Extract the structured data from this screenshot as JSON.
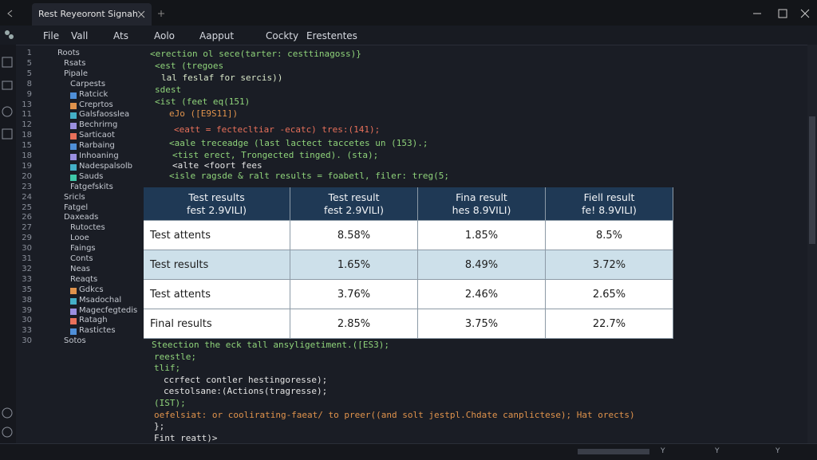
{
  "tab": {
    "title": "Rest Reyeoront Signah"
  },
  "menu": [
    "File",
    "Vall",
    "Ats",
    "Aolo",
    "Aapput",
    "Cockty",
    "Erestentes"
  ],
  "sidebar": [
    "Roots",
    "Rsats",
    "Pipale",
    "Carpests",
    "Ratcick",
    "Creprtos",
    "Galsfaosslea",
    "Bechrirng",
    "Sarticaot",
    "Rarbaing",
    "Inhoaning",
    "Nadespalsolb",
    "Sauds",
    "Fatgefskits",
    "Sricls",
    "Fatgel",
    "Daxeads",
    "Rutoctes",
    "Looe",
    "Faings",
    "Conts",
    "Neas",
    "Reaqts",
    "Gdkcs",
    "Msadochal",
    "Magecfegtedis",
    "Ratagh",
    "Rastictes",
    "Sotos"
  ],
  "line_numbers": [
    "1",
    "5",
    "5",
    "8",
    "9",
    "13",
    "11",
    "12",
    "18",
    "15",
    "18",
    "19",
    "20",
    "23",
    "24",
    "25",
    "26",
    "27",
    "29",
    "30",
    "31",
    "32",
    "33",
    "35",
    "38",
    "39",
    "30",
    "33",
    "30"
  ],
  "code_top": [
    {
      "text": "<erection ol sece(tarter: cesttinagoss)}",
      "color": "#8fd37a"
    },
    {
      "text": "<est (tregoes",
      "color": "#8fd37a"
    },
    {
      "text": "lal feslaf for sercis))",
      "color": "#d8e6c8"
    },
    {
      "text": "sdest",
      "color": "#8fd37a"
    },
    {
      "text": "<ist (feet eq(151)",
      "color": "#8fd37a"
    },
    {
      "text": "eJo ([E9S11])",
      "color": "#e0934c"
    },
    {
      "text": "<eatt = fectecltiar -ecatc) tres:(141);",
      "color": "#e8705a"
    },
    {
      "text": "<aale treceadge (last lactect taccetes un (153).;",
      "color": "#8fd37a"
    },
    {
      "text": "<tist erect, Trongected tinged). (sta);",
      "color": "#8fd37a"
    },
    {
      "text": "<alte <foort fees",
      "color": "#e4e4e4"
    },
    {
      "text": "<isle ragsde & ralt results = foabetl, filer: treg(5;",
      "color": "#8fd37a"
    }
  ],
  "table": {
    "header": [
      [
        "Test results",
        "fest 2.9VILI)"
      ],
      [
        "Test result",
        "fest 2.9VILI)"
      ],
      [
        "Fina result",
        "hes 8.9VILI)"
      ],
      [
        "Fiell result",
        "fe! 8.9VILI)"
      ]
    ],
    "rows": [
      [
        "Test attents",
        "8.58%",
        "1.85%",
        "8.5%"
      ],
      [
        "Test results",
        "1.65%",
        "8.49%",
        "3.72%"
      ],
      [
        "Test attents",
        "3.76%",
        "2.46%",
        "2.65%"
      ],
      [
        "Final results",
        "2.85%",
        "3.75%",
        "22.7%"
      ]
    ]
  },
  "code_bottom": [
    {
      "text": "Steection the eck tall ansyligetiment.([ES3);",
      "color": "#8fd37a"
    },
    {
      "text": "reestle;",
      "color": "#8fd37a"
    },
    {
      "text": "tlif;",
      "color": "#8fd37a"
    },
    {
      "text": "ccrfect contler hestingoresse);",
      "color": "#e4e4e4"
    },
    {
      "text": "cestolsane:(Actions(tragresse);",
      "color": "#e4e4e4"
    },
    {
      "text": "(IST);",
      "color": "#8fd37a"
    },
    {
      "text": "oefelsiat: or coolirating-faeat/ to preer((and solt jestpl.Chdate canplictese); Hat orects)",
      "color": "#e0934c"
    },
    {
      "text": "};",
      "color": "#e4e4e4"
    },
    {
      "text": "Fint reatt)>",
      "color": "#e4e4e4"
    }
  ],
  "status": [
    "Y",
    "Y",
    "Y"
  ]
}
